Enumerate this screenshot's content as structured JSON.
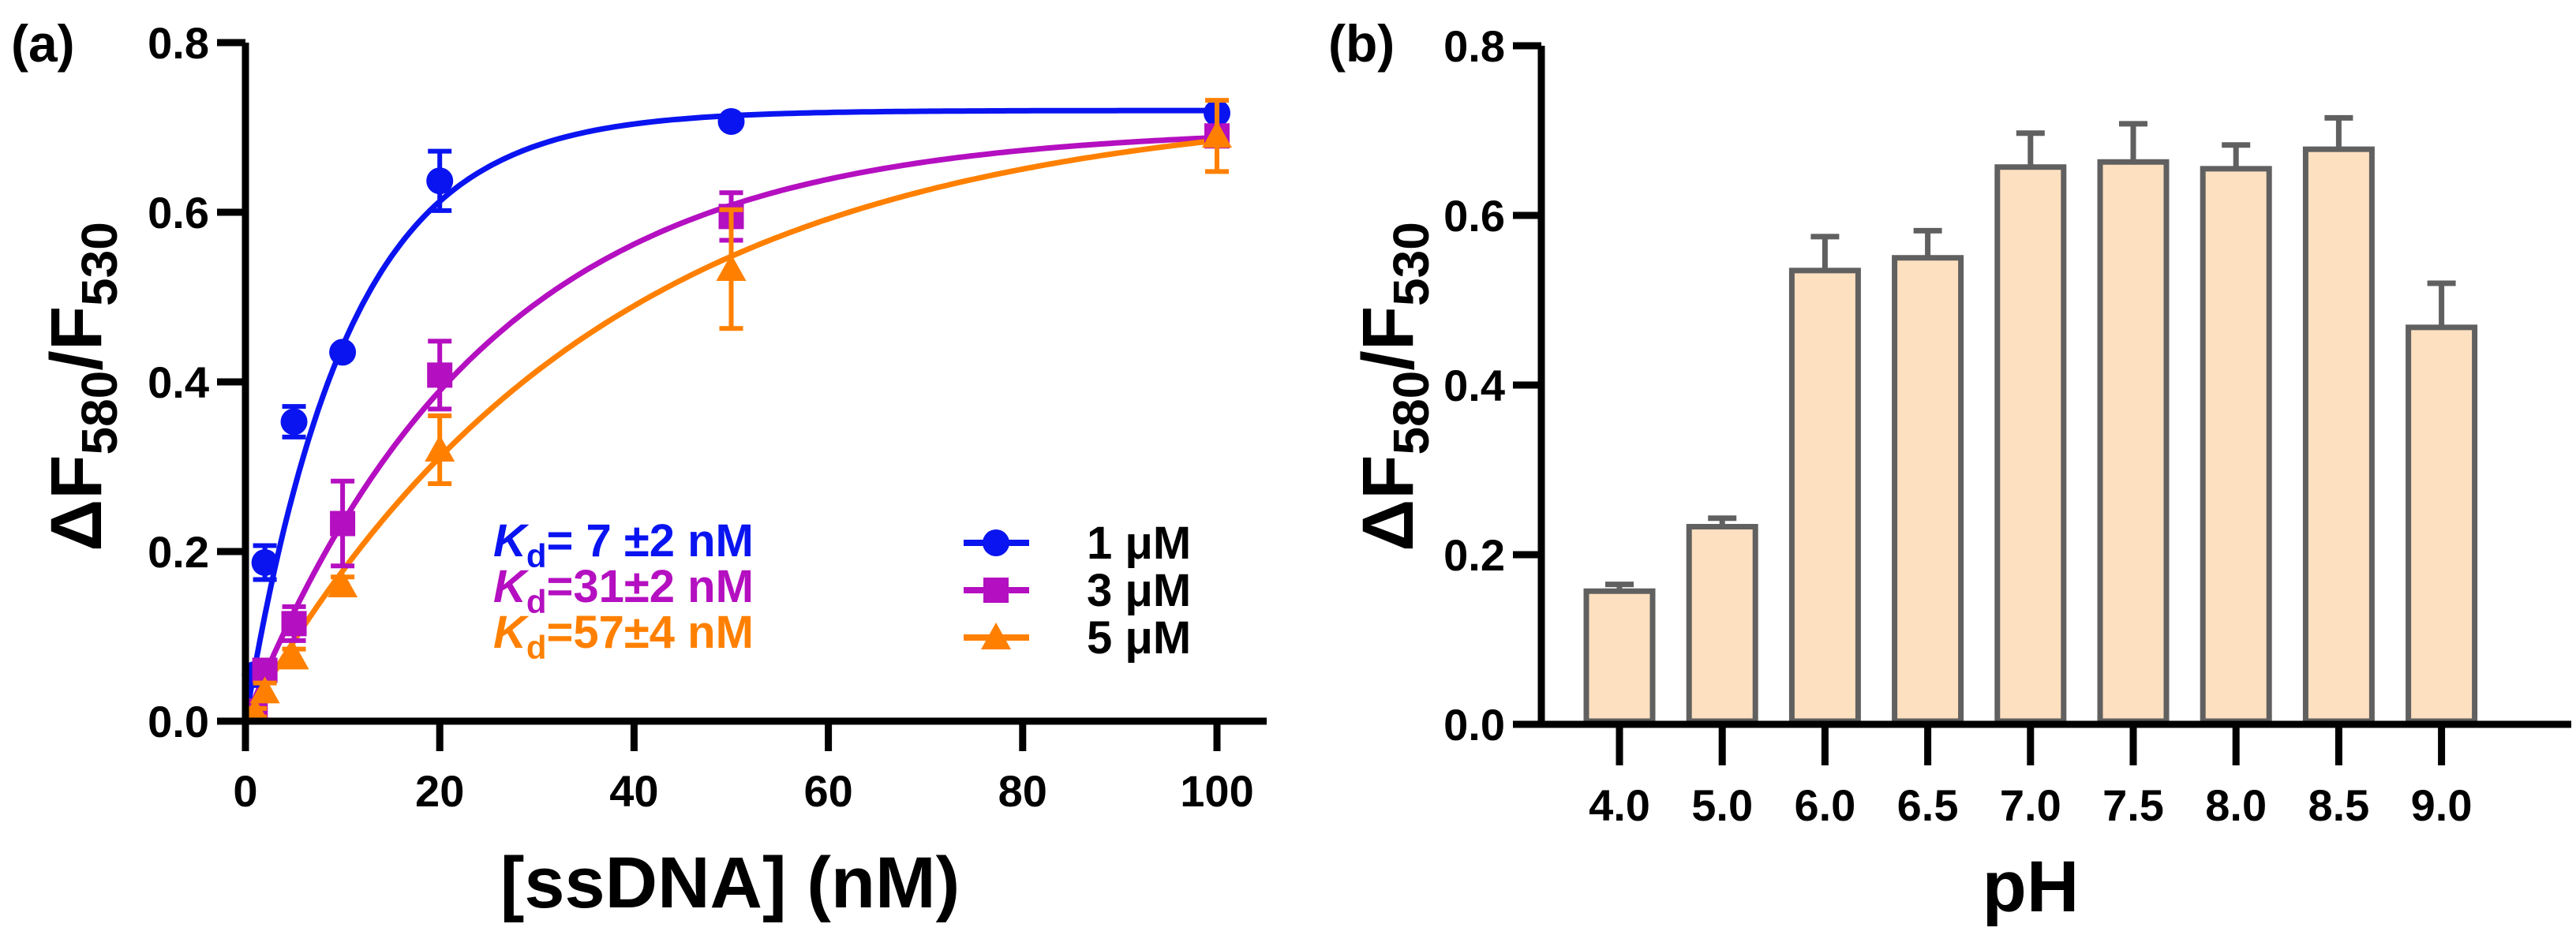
{
  "chart_data": [
    {
      "type": "scatter",
      "panel_label": "(a)",
      "xlabel": "[ssDNA] (nM)",
      "ylabel": {
        "p1": "ΔF",
        "s1": "580",
        "p2": "/F",
        "s2": "530"
      },
      "xlim": [
        0,
        100
      ],
      "ylim": [
        0,
        0.8
      ],
      "xticks": [
        "0",
        "20",
        "40",
        "60",
        "80",
        "100"
      ],
      "xtick_values": [
        0,
        20,
        40,
        60,
        80,
        100
      ],
      "yticks": [
        "0.0",
        "0.2",
        "0.4",
        "0.6",
        "0.8"
      ],
      "ytick_values": [
        0,
        0.2,
        0.4,
        0.6,
        0.8
      ],
      "grid": false,
      "legend_position": "bottom-right",
      "x": [
        1,
        2,
        5,
        10,
        20,
        50,
        100
      ],
      "series": [
        {
          "name": "1 μM",
          "color": "#0a14f0",
          "marker": "circle",
          "values": [
            0.055,
            0.187,
            0.353,
            0.435,
            0.637,
            0.707,
            0.717
          ],
          "errors": [
            0.01,
            0.02,
            0.018,
            0,
            0.035,
            0,
            0
          ],
          "fit": {
            "ymax": 0.72,
            "tau": 10.5
          },
          "kd": {
            "k": "K",
            "sub": "d",
            "rest": "= 7 ±2 nM"
          }
        },
        {
          "name": "3 μM",
          "color": "#b40fc0",
          "marker": "square",
          "values": [
            0.012,
            0.06,
            0.115,
            0.233,
            0.408,
            0.595,
            0.69
          ],
          "errors": [
            0.005,
            0.01,
            0.02,
            0.05,
            0.04,
            0.028,
            0.01
          ],
          "fit": {
            "ymax": 0.7,
            "tau": 24.6
          },
          "kd": {
            "k": "K",
            "sub": "d",
            "rest": "=31±2 nM"
          }
        },
        {
          "name": "5 μM",
          "color": "#ff8000",
          "marker": "triangle",
          "values": [
            0.01,
            0.035,
            0.075,
            0.16,
            0.32,
            0.533,
            0.69
          ],
          "errors": [
            0.005,
            0.01,
            0.01,
            0.01,
            0.04,
            0.07,
            0.042
          ],
          "fit": {
            "ymax": 0.73,
            "tau": 36
          },
          "kd": {
            "k": "K",
            "sub": "d",
            "rest": "=57±4 nM"
          }
        }
      ]
    },
    {
      "type": "bar",
      "panel_label": "(b)",
      "xlabel": "pH",
      "ylabel": {
        "p1": "ΔF",
        "s1": "580",
        "p2": "/F",
        "s2": "530"
      },
      "ylim": [
        0,
        0.8
      ],
      "yticks": [
        "0.0",
        "0.2",
        "0.4",
        "0.6",
        "0.8"
      ],
      "ytick_values": [
        0,
        0.2,
        0.4,
        0.6,
        0.8
      ],
      "grid": false,
      "categories": [
        "4.0",
        "5.0",
        "6.0",
        "6.5",
        "7.0",
        "7.5",
        "8.0",
        "8.5",
        "9.0"
      ],
      "values": [
        0.157,
        0.233,
        0.535,
        0.55,
        0.657,
        0.663,
        0.655,
        0.678,
        0.468
      ],
      "errors": [
        0.008,
        0.01,
        0.04,
        0.032,
        0.04,
        0.045,
        0.028,
        0.037,
        0.052
      ],
      "bar_color": "#fde0c0",
      "edge_color": "#606060"
    }
  ]
}
